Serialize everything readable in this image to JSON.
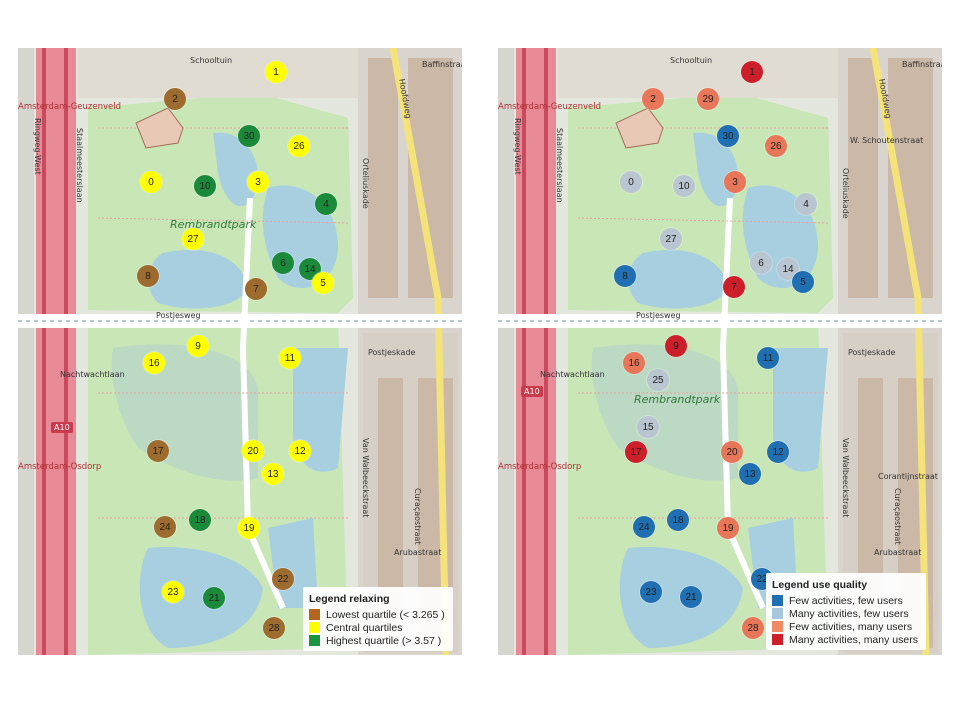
{
  "legend_left": {
    "title": "Legend relaxing",
    "items": [
      {
        "label": "Lowest quartile (< 3.265 )",
        "color": "#b5651d"
      },
      {
        "label": "Central quartiles",
        "color": "#ffff00"
      },
      {
        "label": "Highest quartile (> 3.57 )",
        "color": "#1a9640"
      }
    ]
  },
  "legend_right": {
    "title": "Legend use quality",
    "items": [
      {
        "label": "Few activities, few users",
        "color": "#1f6fb2"
      },
      {
        "label": "Many activities, few users",
        "color": "#a6c8de"
      },
      {
        "label": "Few activities, many users",
        "color": "#ef8a62"
      },
      {
        "label": "Many activities, many users",
        "color": "#cc1f2a"
      }
    ]
  },
  "markers_left": [
    {
      "id": "1",
      "cat": "central"
    },
    {
      "id": "2",
      "cat": "low"
    },
    {
      "id": "30",
      "cat": "high"
    },
    {
      "id": "26",
      "cat": "central"
    },
    {
      "id": "0",
      "cat": "central"
    },
    {
      "id": "10",
      "cat": "high"
    },
    {
      "id": "3",
      "cat": "central"
    },
    {
      "id": "4",
      "cat": "high"
    },
    {
      "id": "27",
      "cat": "central"
    },
    {
      "id": "6",
      "cat": "high"
    },
    {
      "id": "14",
      "cat": "high"
    },
    {
      "id": "5",
      "cat": "central"
    },
    {
      "id": "8",
      "cat": "low"
    },
    {
      "id": "7",
      "cat": "low"
    },
    {
      "id": "9",
      "cat": "central"
    },
    {
      "id": "11",
      "cat": "central"
    },
    {
      "id": "16",
      "cat": "central"
    },
    {
      "id": "17",
      "cat": "low"
    },
    {
      "id": "20",
      "cat": "central"
    },
    {
      "id": "12",
      "cat": "central"
    },
    {
      "id": "13",
      "cat": "central"
    },
    {
      "id": "24",
      "cat": "low"
    },
    {
      "id": "18",
      "cat": "high"
    },
    {
      "id": "19",
      "cat": "central"
    },
    {
      "id": "22",
      "cat": "low"
    },
    {
      "id": "23",
      "cat": "central"
    },
    {
      "id": "21",
      "cat": "high"
    },
    {
      "id": "28",
      "cat": "low"
    }
  ],
  "markers_right": [
    {
      "id": "1",
      "cat": "many_many"
    },
    {
      "id": "2",
      "cat": "few_many"
    },
    {
      "id": "29",
      "cat": "few_many"
    },
    {
      "id": "30",
      "cat": "few_few"
    },
    {
      "id": "26",
      "cat": "few_many"
    },
    {
      "id": "0",
      "cat": "many_few"
    },
    {
      "id": "10",
      "cat": "many_few"
    },
    {
      "id": "3",
      "cat": "few_many"
    },
    {
      "id": "4",
      "cat": "many_few"
    },
    {
      "id": "27",
      "cat": "many_few"
    },
    {
      "id": "6",
      "cat": "many_few"
    },
    {
      "id": "14",
      "cat": "many_few"
    },
    {
      "id": "5",
      "cat": "few_few"
    },
    {
      "id": "8",
      "cat": "few_few"
    },
    {
      "id": "7",
      "cat": "many_many"
    },
    {
      "id": "9",
      "cat": "many_many"
    },
    {
      "id": "11",
      "cat": "few_few"
    },
    {
      "id": "16",
      "cat": "few_many"
    },
    {
      "id": "25",
      "cat": "many_few"
    },
    {
      "id": "15",
      "cat": "many_few"
    },
    {
      "id": "17",
      "cat": "many_many"
    },
    {
      "id": "20",
      "cat": "few_many"
    },
    {
      "id": "12",
      "cat": "few_few"
    },
    {
      "id": "13",
      "cat": "few_few"
    },
    {
      "id": "24",
      "cat": "few_few"
    },
    {
      "id": "18",
      "cat": "few_few"
    },
    {
      "id": "19",
      "cat": "few_many"
    },
    {
      "id": "22",
      "cat": "few_few"
    },
    {
      "id": "23",
      "cat": "few_few"
    },
    {
      "id": "21",
      "cat": "few_few"
    },
    {
      "id": "28",
      "cat": "few_many"
    }
  ],
  "labels_left": [
    "Schooltuin",
    "Amsterdam-Geuzenveld",
    "Ringweg-West",
    "Staalmeesterslaan",
    "Rembrandtpark",
    "Postjesweg",
    "Nachtwachtlaan",
    "Amsterdam-Osdorp",
    "A10",
    "Hoofdweg",
    "Orteliuskade",
    "Postjeskade",
    "Van Walbeeckstraat",
    "Curaçaostraat",
    "Arubastraat",
    "Baffinstraat"
  ],
  "labels_right": [
    "Schooltuin",
    "Amsterdam-Geuzenveld",
    "Ringweg-West",
    "Staalmeesterslaan",
    "Rembrandtpark",
    "Postjesweg",
    "Nachtwachtlaan",
    "Amsterdam-Osdorp",
    "A10",
    "Hoofdweg",
    "W. Schoutenstraat",
    "Orteliuskade",
    "Postjeskade",
    "Van Walbeeckstraat",
    "Curaçaostraat",
    "Arubastraat",
    "Baffinstraat",
    "Corantijnstraat"
  ]
}
